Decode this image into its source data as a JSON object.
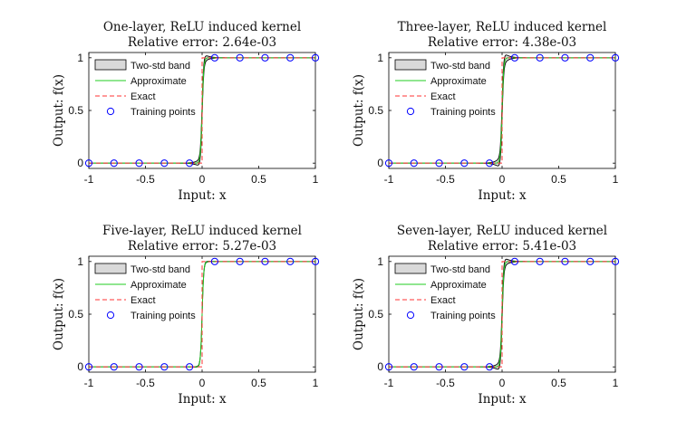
{
  "chart_data": [
    {
      "type": "line",
      "title": "One-layer, ReLU induced kernel",
      "subtitle": "Relative error: 2.64e-03",
      "xlabel": "Input: x",
      "ylabel": "Output: f(x)",
      "xlim": [
        -1,
        1
      ],
      "ylim": [
        -0.05,
        1.05
      ],
      "xticks": [
        "-1",
        "-0.5",
        "0",
        "0.5",
        "1"
      ],
      "yticks": [
        "0",
        "0.5",
        "1"
      ],
      "legend": [
        "Two-std band",
        "Approximate",
        "Exact",
        "Training points"
      ],
      "legend_position": "left",
      "training_points": {
        "x": [
          -1,
          -0.7778,
          -0.5556,
          -0.3333,
          -0.1111,
          0.1111,
          0.3333,
          0.5556,
          0.7778,
          1
        ],
        "y": [
          0,
          0,
          0,
          0,
          0,
          1,
          1,
          1,
          1,
          1
        ]
      },
      "exact": {
        "x": [
          -1,
          0,
          0,
          1
        ],
        "y": [
          0,
          0,
          1,
          1
        ]
      },
      "band_width": 0.06
    },
    {
      "type": "line",
      "title": "Three-layer, ReLU induced kernel",
      "subtitle": "Relative error: 4.38e-03",
      "xlabel": "Input: x",
      "ylabel": "Output: f(x)",
      "xlim": [
        -1,
        1
      ],
      "ylim": [
        -0.05,
        1.05
      ],
      "xticks": [
        "-1",
        "-0.5",
        "0",
        "0.5",
        "1"
      ],
      "yticks": [
        "0",
        "0.5",
        "1"
      ],
      "legend": [
        "Two-std band",
        "Approximate",
        "Exact",
        "Training points"
      ],
      "legend_position": "left",
      "training_points": {
        "x": [
          -1,
          -0.7778,
          -0.5556,
          -0.3333,
          -0.1111,
          0.1111,
          0.3333,
          0.5556,
          0.7778,
          1
        ],
        "y": [
          0,
          0,
          0,
          0,
          0,
          1,
          1,
          1,
          1,
          1
        ]
      },
      "exact": {
        "x": [
          -1,
          0,
          0,
          1
        ],
        "y": [
          0,
          0,
          1,
          1
        ]
      },
      "band_width": 0.08
    },
    {
      "type": "line",
      "title": "Five-layer, ReLU induced kernel",
      "subtitle": "Relative error: 5.27e-03",
      "xlabel": "Input: x",
      "ylabel": "Output: f(x)",
      "xlim": [
        -1,
        1
      ],
      "ylim": [
        -0.05,
        1.05
      ],
      "xticks": [
        "-1",
        "-0.5",
        "0",
        "0.5",
        "1"
      ],
      "yticks": [
        "0",
        "0.5",
        "1"
      ],
      "legend": [
        "Two-std band",
        "Approximate",
        "Exact",
        "Training points"
      ],
      "legend_position": "left",
      "training_points": {
        "x": [
          -1,
          -0.7778,
          -0.5556,
          -0.3333,
          -0.1111,
          0.1111,
          0.3333,
          0.5556,
          0.7778,
          1
        ],
        "y": [
          0,
          0,
          0,
          0,
          0,
          1,
          1,
          1,
          1,
          1
        ]
      },
      "exact": {
        "x": [
          -1,
          0,
          0,
          1
        ],
        "y": [
          0,
          0,
          1,
          1
        ]
      },
      "band_width": 0.01
    },
    {
      "type": "line",
      "title": "Seven-layer, ReLU induced kernel",
      "subtitle": "Relative error: 5.41e-03",
      "xlabel": "Input: x",
      "ylabel": "Output: f(x)",
      "xlim": [
        -1,
        1
      ],
      "ylim": [
        -0.05,
        1.05
      ],
      "xticks": [
        "-1",
        "-0.5",
        "0",
        "0.5",
        "1"
      ],
      "yticks": [
        "0",
        "0.5",
        "1"
      ],
      "legend": [
        "Two-std band",
        "Approximate",
        "Exact",
        "Training points"
      ],
      "legend_position": "left",
      "training_points": {
        "x": [
          -1,
          -0.7778,
          -0.5556,
          -0.3333,
          -0.1111,
          0.1111,
          0.3333,
          0.5556,
          0.7778,
          1
        ],
        "y": [
          0,
          0,
          0,
          0,
          0,
          1,
          1,
          1,
          1,
          1
        ]
      },
      "exact": {
        "x": [
          -1,
          0,
          0,
          1
        ],
        "y": [
          0,
          0,
          1,
          1
        ]
      },
      "band_width": 0.07
    }
  ],
  "colors": {
    "band_fill": "#d9d9d9",
    "band_edge": "#000000",
    "approximate": "#22cc22",
    "exact": "#ff3333",
    "training": "#0000ff"
  }
}
